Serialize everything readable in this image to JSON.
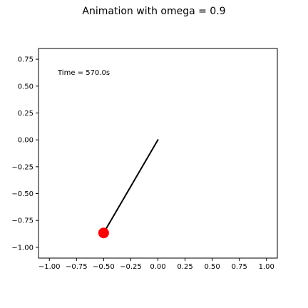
{
  "chart_data": {
    "type": "line",
    "title": "Animation with omega = 0.9",
    "annotation": "Time = 570.0s",
    "xlabel": "",
    "ylabel": "",
    "xlim": [
      -1.1,
      1.1
    ],
    "ylim": [
      -1.1,
      0.85
    ],
    "xticks": [
      -1.0,
      -0.75,
      -0.5,
      -0.25,
      0.0,
      0.25,
      0.5,
      0.75,
      1.0
    ],
    "xtick_labels": [
      "−1.00",
      "−0.75",
      "−0.50",
      "−0.25",
      "0.00",
      "0.25",
      "0.50",
      "0.75",
      "1.00"
    ],
    "yticks": [
      0.75,
      0.5,
      0.25,
      0.0,
      -0.25,
      -0.5,
      -0.75,
      -1.0
    ],
    "ytick_labels": [
      "0.75",
      "0.50",
      "0.25",
      "0.00",
      "−0.25",
      "−0.50",
      "−0.75",
      "−1.00"
    ],
    "grid": false,
    "series": [
      {
        "x": [
          0.0,
          -0.5
        ],
        "y": [
          0.0,
          -0.866
        ]
      }
    ],
    "pivot": {
      "x": 0.0,
      "y": 0.0
    },
    "bob": {
      "x": -0.5,
      "y": -0.866
    },
    "colors": {
      "rod": "#000000",
      "bob": "#ff0000",
      "axes": "#000000",
      "background": "#ffffff"
    }
  }
}
